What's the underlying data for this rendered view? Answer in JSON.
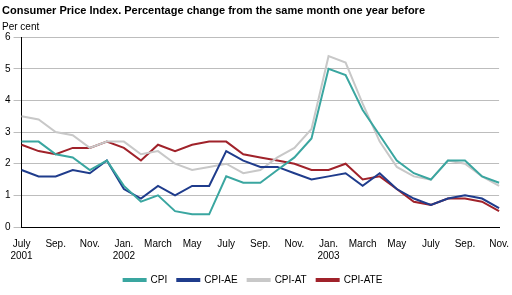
{
  "chart_data": {
    "type": "line",
    "title": "Consumer Price Index. Percentage change from the same month one year before",
    "ylabel": "Per cent",
    "categories": [
      "July 2001",
      null,
      "Sep.",
      null,
      "Nov.",
      null,
      "Jan. 2002",
      null,
      "March",
      null,
      "May",
      null,
      "July",
      null,
      "Sep.",
      null,
      "Nov.",
      null,
      "Jan. 2003",
      null,
      "March",
      null,
      "May",
      null,
      "July",
      null,
      "Sep.",
      null,
      "Nov."
    ],
    "series": [
      {
        "name": "CPI",
        "color": "#3aa6a0",
        "values": [
          2.7,
          2.7,
          2.3,
          2.2,
          1.8,
          2.1,
          1.3,
          0.8,
          1.0,
          0.5,
          0.4,
          0.4,
          1.6,
          1.4,
          1.4,
          1.8,
          2.2,
          2.8,
          5.0,
          4.8,
          3.7,
          2.9,
          2.1,
          1.7,
          1.5,
          2.1,
          2.1,
          1.6,
          1.4
        ]
      },
      {
        "name": "CPI-AE",
        "color": "#1f3c8c",
        "values": [
          1.8,
          1.6,
          1.6,
          1.8,
          1.7,
          2.1,
          1.2,
          0.9,
          1.3,
          1.0,
          1.3,
          1.3,
          2.4,
          2.1,
          1.9,
          1.9,
          1.7,
          1.5,
          1.6,
          1.7,
          1.3,
          1.7,
          1.2,
          0.9,
          0.7,
          0.9,
          1.0,
          0.9,
          0.6
        ]
      },
      {
        "name": "CPI-AT",
        "color": "#c8c8c8",
        "values": [
          3.5,
          3.4,
          3.0,
          2.9,
          2.5,
          2.7,
          2.7,
          2.3,
          2.4,
          2.0,
          1.8,
          1.9,
          2.0,
          1.7,
          1.8,
          2.2,
          2.5,
          3.1,
          5.4,
          5.2,
          3.9,
          2.7,
          1.9,
          1.6,
          1.5,
          2.1,
          2.0,
          1.6,
          1.3
        ]
      },
      {
        "name": "CPI-ATE",
        "color": "#a0222a",
        "values": [
          2.6,
          2.4,
          2.3,
          2.5,
          2.5,
          2.7,
          2.5,
          2.1,
          2.6,
          2.4,
          2.6,
          2.7,
          2.7,
          2.3,
          2.2,
          2.1,
          2.0,
          1.8,
          1.8,
          2.0,
          1.5,
          1.6,
          1.2,
          0.8,
          0.7,
          0.9,
          0.9,
          0.8,
          0.5
        ]
      }
    ],
    "ylim": [
      0,
      6
    ],
    "yticks": [
      0,
      1,
      2,
      3,
      4,
      5,
      6
    ],
    "grid": true,
    "legend": "bottom"
  }
}
